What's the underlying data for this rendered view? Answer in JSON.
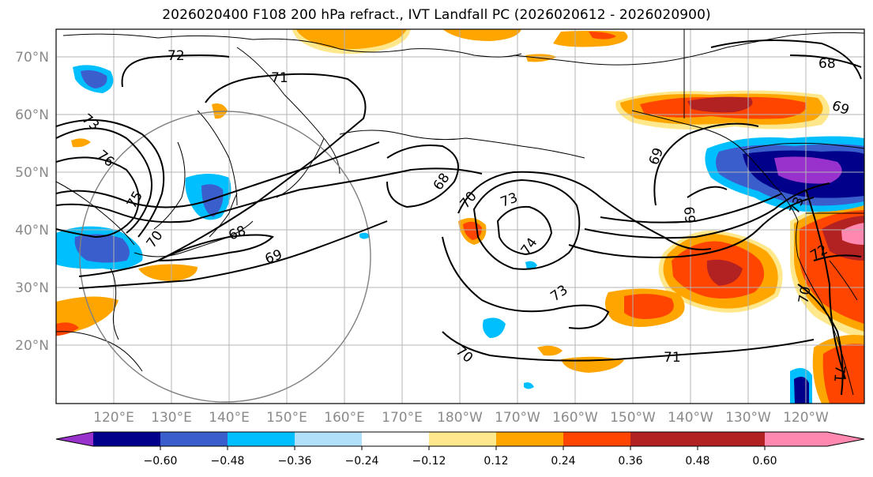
{
  "title": "2026020400 F108 200 hPa refract., IVT Landfall PC (2026020612 - 2026020900)",
  "lat_labels": [
    "70°N",
    "60°N",
    "50°N",
    "40°N",
    "30°N",
    "20°N"
  ],
  "lon_labels": [
    "120°E",
    "130°E",
    "140°E",
    "150°E",
    "160°E",
    "170°E",
    "180°W",
    "170°W",
    "160°W",
    "150°W",
    "140°W",
    "130°W",
    "120°W"
  ],
  "contour_labels": [
    "72",
    "71",
    "73",
    "76",
    "75",
    "70",
    "68",
    "69",
    "68",
    "70",
    "73",
    "74",
    "73",
    "70",
    "71",
    "69",
    "68",
    "69",
    "73",
    "72",
    "70",
    "71",
    "69"
  ],
  "colorbar": {
    "ticks": [
      "−0.60",
      "−0.48",
      "−0.36",
      "−0.24",
      "−0.12",
      "0.12",
      "0.24",
      "0.36",
      "0.48",
      "0.60"
    ],
    "colors": [
      "#9932cc",
      "#00008b",
      "#3a5fcd",
      "#00bfff",
      "#b0e0fa",
      "#ffffff",
      "#ffe88c",
      "#ffa500",
      "#ff4500",
      "#b22222",
      "#ff88b0"
    ]
  }
}
